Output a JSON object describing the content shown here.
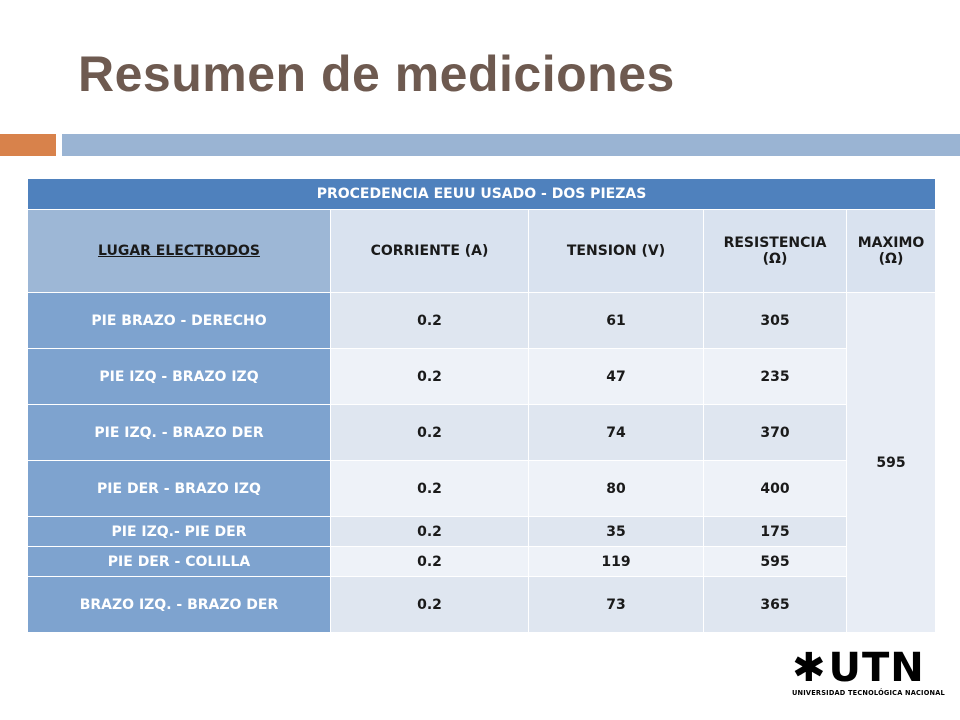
{
  "title": "Resumen de mediciones",
  "colors": {
    "title": "#6e5a50",
    "accent_bar": "#d8824b",
    "main_bar": "#9ab4d3",
    "table_header": "#4f81bd"
  },
  "table": {
    "caption": "PROCEDENCIA  EEUU USADO - DOS PIEZAS",
    "headers": {
      "lugar": "LUGAR ELECTRODOS",
      "corriente": "CORRIENTE  (A)",
      "tension": "TENSION  (V)",
      "resistencia_1": "RESISTENCIA",
      "resistencia_2": "(Ω)",
      "maximo_1": "MAXIMO",
      "maximo_2": "(Ω)"
    },
    "rows": [
      {
        "lugar": "PIE BRAZO -  DERECHO",
        "corriente": "0.2",
        "tension": "61",
        "resistencia": "305"
      },
      {
        "lugar": "PIE IZQ -  BRAZO IZQ",
        "corriente": "0.2",
        "tension": "47",
        "resistencia": "235"
      },
      {
        "lugar": "PIE IZQ. -  BRAZO DER",
        "corriente": "0.2",
        "tension": "74",
        "resistencia": "370"
      },
      {
        "lugar": "PIE DER -  BRAZO IZQ",
        "corriente": "0.2",
        "tension": "80",
        "resistencia": "400"
      },
      {
        "lugar": "PIE IZQ.- PIE DER",
        "corriente": "0.2",
        "tension": "35",
        "resistencia": "175"
      },
      {
        "lugar": "PIE DER - COLILLA",
        "corriente": "0.2",
        "tension": "119",
        "resistencia": "595"
      },
      {
        "lugar": "BRAZO IZQ. - BRAZO DER",
        "corriente": "0.2",
        "tension": "73",
        "resistencia": "365"
      }
    ],
    "maximo": "595"
  },
  "logo": {
    "text": "UTN",
    "subtitle": "UNIVERSIDAD TECNOLÓGICA NACIONAL",
    "icon": "utn-star-icon"
  }
}
